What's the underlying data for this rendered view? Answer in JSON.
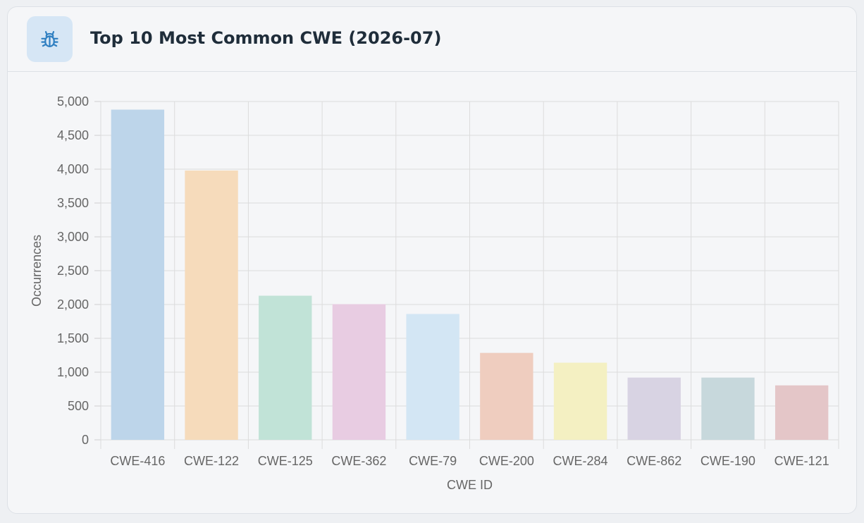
{
  "header": {
    "title": "Top 10 Most Common CWE (2026-07)",
    "icon": "bug-icon"
  },
  "chart_data": {
    "type": "bar",
    "title": "Top 10 Most Common CWE (2026-07)",
    "xlabel": "CWE ID",
    "ylabel": "Occurrences",
    "ylim": [
      0,
      5000
    ],
    "ytick_step": 500,
    "grid": true,
    "legend": "none",
    "categories": [
      "CWE-416",
      "CWE-122",
      "CWE-125",
      "CWE-362",
      "CWE-79",
      "CWE-200",
      "CWE-284",
      "CWE-862",
      "CWE-190",
      "CWE-121"
    ],
    "values": [
      4880,
      3980,
      2130,
      2005,
      1860,
      1285,
      1140,
      920,
      920,
      805
    ],
    "colors": [
      "#bdd5ea",
      "#f6dbbb",
      "#c1e3d7",
      "#e8cce2",
      "#d3e6f4",
      "#efcdbf",
      "#f4f0c2",
      "#d8d3e3",
      "#c7d8dc",
      "#e4c6c8"
    ]
  }
}
